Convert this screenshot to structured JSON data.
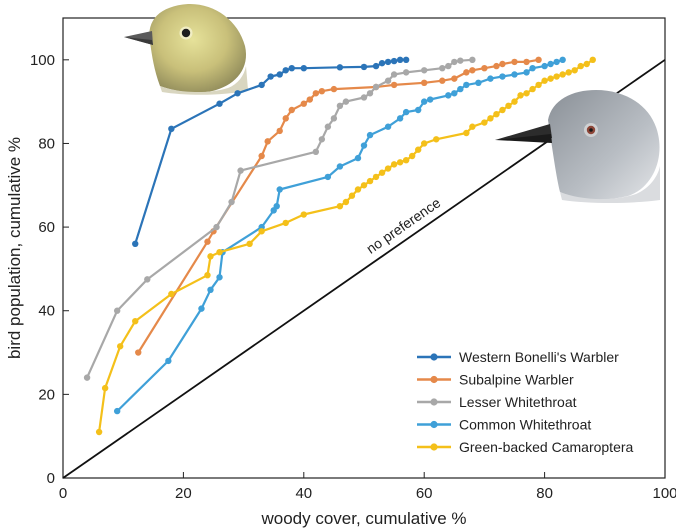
{
  "chart_data": {
    "type": "line",
    "xlabel": "woody cover, cumulative %",
    "ylabel": "bird population, cumulative %",
    "xlim": [
      0,
      100
    ],
    "ylim": [
      0,
      110
    ],
    "xticks": [
      0,
      20,
      40,
      60,
      80,
      100
    ],
    "yticks": [
      0,
      20,
      40,
      60,
      80,
      100
    ],
    "grid": false,
    "legend_position": "bottom-right",
    "reference_line": {
      "label": "no preference",
      "from": [
        0,
        0
      ],
      "to": [
        100,
        100
      ],
      "color": "#111111"
    },
    "series": [
      {
        "name": "Western Bonelli's Warbler",
        "color": "#2b74b8",
        "points": [
          [
            12,
            56
          ],
          [
            18,
            83.5
          ],
          [
            26,
            89.5
          ],
          [
            29,
            92
          ],
          [
            33,
            94
          ],
          [
            34.5,
            96
          ],
          [
            36,
            96.5
          ],
          [
            37,
            97.5
          ],
          [
            38,
            98
          ],
          [
            40,
            98
          ],
          [
            46,
            98.2
          ],
          [
            50,
            98.3
          ],
          [
            52,
            98.5
          ],
          [
            53,
            99.2
          ],
          [
            54,
            99.5
          ],
          [
            55,
            99.7
          ],
          [
            56,
            100
          ],
          [
            57,
            100
          ]
        ]
      },
      {
        "name": "Subalpine Warbler",
        "color": "#e5894a",
        "points": [
          [
            12.5,
            30
          ],
          [
            24,
            56.5
          ],
          [
            25,
            59
          ],
          [
            33,
            77
          ],
          [
            34,
            80.5
          ],
          [
            36,
            83
          ],
          [
            37,
            86
          ],
          [
            38,
            88
          ],
          [
            40,
            89.5
          ],
          [
            41,
            90.5
          ],
          [
            42,
            92
          ],
          [
            43,
            92.5
          ],
          [
            45,
            93
          ],
          [
            52,
            93.5
          ],
          [
            55,
            94
          ],
          [
            60,
            94.5
          ],
          [
            63,
            95
          ],
          [
            65,
            95.5
          ],
          [
            67,
            97
          ],
          [
            68,
            97.5
          ],
          [
            70,
            98
          ],
          [
            72,
            98.5
          ],
          [
            73,
            99
          ],
          [
            75,
            99.5
          ],
          [
            77,
            99.5
          ],
          [
            79,
            100
          ]
        ]
      },
      {
        "name": "Lesser Whitethroat",
        "color": "#a8a8a8",
        "points": [
          [
            4,
            24
          ],
          [
            9,
            40
          ],
          [
            14,
            47.5
          ],
          [
            25.5,
            60
          ],
          [
            28,
            66
          ],
          [
            29.5,
            73.5
          ],
          [
            42,
            78
          ],
          [
            43,
            81
          ],
          [
            44,
            84
          ],
          [
            45,
            86
          ],
          [
            46,
            89
          ],
          [
            47,
            90
          ],
          [
            50,
            91
          ],
          [
            51,
            92
          ],
          [
            52,
            93.5
          ],
          [
            54,
            95
          ],
          [
            55,
            96.5
          ],
          [
            57,
            97
          ],
          [
            60,
            97.5
          ],
          [
            63,
            98
          ],
          [
            64,
            98.5
          ],
          [
            65,
            99.5
          ],
          [
            66,
            99.8
          ],
          [
            68,
            100
          ]
        ]
      },
      {
        "name": "Common Whitethroat",
        "color": "#3fa0d8",
        "points": [
          [
            9,
            16
          ],
          [
            17.5,
            28
          ],
          [
            23,
            40.5
          ],
          [
            24.5,
            45
          ],
          [
            26,
            48
          ],
          [
            26.5,
            54
          ],
          [
            33,
            60
          ],
          [
            35,
            64
          ],
          [
            35.5,
            65
          ],
          [
            36,
            69
          ],
          [
            44,
            72
          ],
          [
            46,
            74.5
          ],
          [
            49,
            76.5
          ],
          [
            50,
            79.5
          ],
          [
            51,
            82
          ],
          [
            54,
            84
          ],
          [
            56,
            86
          ],
          [
            57,
            87.5
          ],
          [
            59,
            88
          ],
          [
            60,
            90
          ],
          [
            61,
            90.5
          ],
          [
            64,
            91.5
          ],
          [
            65,
            92
          ],
          [
            66,
            93
          ],
          [
            67,
            94
          ],
          [
            69,
            94.5
          ],
          [
            71,
            95.5
          ],
          [
            73,
            96
          ],
          [
            75,
            96.5
          ],
          [
            77,
            97
          ],
          [
            78,
            98
          ],
          [
            80,
            98.5
          ],
          [
            81,
            99
          ],
          [
            82,
            99.5
          ],
          [
            83,
            100
          ]
        ]
      },
      {
        "name": "Green-backed Camaroptera",
        "color": "#f4c01a",
        "points": [
          [
            6,
            11
          ],
          [
            7,
            21.5
          ],
          [
            9.5,
            31.5
          ],
          [
            12,
            37.5
          ],
          [
            18,
            44
          ],
          [
            24,
            48.5
          ],
          [
            24.5,
            53
          ],
          [
            26,
            54
          ],
          [
            31,
            56
          ],
          [
            33,
            59
          ],
          [
            37,
            61
          ],
          [
            40,
            63
          ],
          [
            46,
            65
          ],
          [
            47,
            66
          ],
          [
            48,
            67.5
          ],
          [
            49,
            69
          ],
          [
            50,
            70
          ],
          [
            51,
            71
          ],
          [
            52,
            72
          ],
          [
            53,
            73
          ],
          [
            54,
            74
          ],
          [
            55,
            75
          ],
          [
            56,
            75.5
          ],
          [
            57,
            76
          ],
          [
            58,
            77
          ],
          [
            59,
            78.5
          ],
          [
            60,
            80
          ],
          [
            62,
            81
          ],
          [
            67,
            82.5
          ],
          [
            68,
            84
          ],
          [
            70,
            85
          ],
          [
            71,
            86
          ],
          [
            72,
            87
          ],
          [
            73,
            88
          ],
          [
            74,
            89
          ],
          [
            75,
            90
          ],
          [
            76,
            91.5
          ],
          [
            77,
            92
          ],
          [
            78,
            93
          ],
          [
            79,
            94
          ],
          [
            80,
            95
          ],
          [
            81,
            95.5
          ],
          [
            82,
            96
          ],
          [
            83,
            96.5
          ],
          [
            84,
            97
          ],
          [
            85,
            97.5
          ],
          [
            86,
            98.5
          ],
          [
            87,
            99
          ],
          [
            88,
            100
          ]
        ]
      }
    ]
  },
  "images": {
    "bird_top_left": "warbler-head-illustration",
    "bird_right": "camaroptera-head-illustration"
  }
}
